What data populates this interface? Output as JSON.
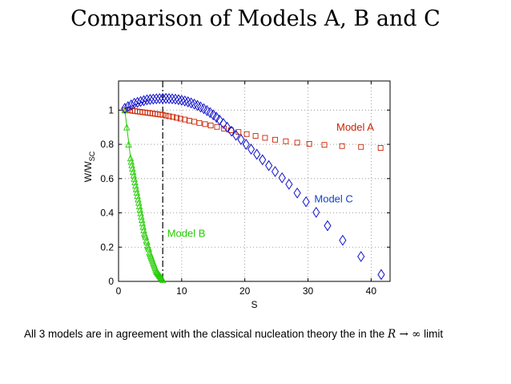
{
  "page": {
    "title": "Comparison of Models A, B and C",
    "caption_prefix": "All 3 models are in agreement with the classical nucleation theory the in the",
    "caption_math": "R → ∞",
    "caption_suffix": "limit"
  },
  "chart_data": {
    "type": "scatter",
    "title": "Comparison of Models A, B and C",
    "xlabel": "S",
    "ylabel": "W/W",
    "ylabel_subscript": "SC",
    "xlim": [
      0,
      43
    ],
    "ylim": [
      0,
      1.17
    ],
    "xticks": [
      0,
      10,
      20,
      30,
      40
    ],
    "yticks": [
      0,
      0.2,
      0.4,
      0.6,
      0.8,
      1
    ],
    "ytick_labels": [
      "0",
      "0.2",
      "0.4",
      "0.6",
      "0.8",
      "1"
    ],
    "xtick_labels": [
      "0",
      "10",
      "20",
      "30",
      "40"
    ],
    "grid": "dotted",
    "vertical_reference_line": {
      "x": 7.0,
      "style": "dash-dot",
      "color": "#000000"
    },
    "series": [
      {
        "name": "Model A",
        "marker": "square",
        "color": "#cc2200",
        "x": [
          1,
          1.4,
          1.8,
          2.2,
          2.6,
          3.0,
          3.4,
          3.8,
          4.2,
          4.6,
          5.0,
          5.4,
          5.8,
          6.2,
          6.6,
          7.0,
          7.5,
          8.0,
          8.6,
          9.2,
          9.8,
          10.5,
          11.2,
          12.0,
          12.8,
          13.7,
          14.6,
          15.6,
          16.7,
          17.8,
          19.0,
          20.3,
          21.7,
          23.2,
          24.8,
          26.5,
          28.3,
          30.2,
          32.6,
          35.4,
          38.4,
          41.5
        ],
        "y": [
          1.0,
          1.0,
          0.998,
          0.996,
          0.994,
          0.992,
          0.99,
          0.988,
          0.986,
          0.984,
          0.982,
          0.98,
          0.978,
          0.976,
          0.974,
          0.972,
          0.968,
          0.964,
          0.96,
          0.955,
          0.95,
          0.945,
          0.938,
          0.932,
          0.925,
          0.918,
          0.91,
          0.902,
          0.892,
          0.882,
          0.872,
          0.86,
          0.849,
          0.838,
          0.827,
          0.818,
          0.81,
          0.803,
          0.797,
          0.79,
          0.785,
          0.779
        ]
      },
      {
        "name": "Model B",
        "marker": "triangle",
        "color": "#22cc00",
        "x": [
          1.0,
          1.3,
          1.6,
          1.9,
          2.0,
          2.1,
          2.2,
          2.3,
          2.4,
          2.5,
          2.6,
          2.7,
          2.8,
          2.9,
          3.0,
          3.1,
          3.2,
          3.3,
          3.4,
          3.5,
          3.6,
          3.7,
          3.8,
          3.9,
          4.0,
          4.1,
          4.2,
          4.3,
          4.4,
          4.5,
          4.6,
          4.7,
          4.8,
          4.9,
          5.0,
          5.1,
          5.2,
          5.3,
          5.4,
          5.5,
          5.6,
          5.7,
          5.8,
          5.9,
          6.0,
          6.1,
          6.2,
          6.3,
          6.4,
          6.5,
          6.6,
          6.7,
          6.8,
          6.9,
          7.0
        ],
        "y": [
          1.0,
          0.9,
          0.8,
          0.72,
          0.7,
          0.68,
          0.66,
          0.64,
          0.62,
          0.6,
          0.58,
          0.56,
          0.54,
          0.52,
          0.5,
          0.48,
          0.46,
          0.44,
          0.42,
          0.4,
          0.38,
          0.36,
          0.34,
          0.32,
          0.3,
          0.28,
          0.27,
          0.26,
          0.24,
          0.23,
          0.21,
          0.2,
          0.19,
          0.17,
          0.16,
          0.15,
          0.14,
          0.13,
          0.12,
          0.11,
          0.1,
          0.09,
          0.08,
          0.07,
          0.06,
          0.055,
          0.05,
          0.045,
          0.04,
          0.035,
          0.03,
          0.025,
          0.02,
          0.015,
          0.01
        ]
      },
      {
        "name": "Model C",
        "marker": "diamond",
        "color": "#1111cc",
        "x": [
          1.0,
          1.5,
          2.0,
          2.5,
          3.0,
          3.5,
          4.0,
          4.5,
          5.0,
          5.5,
          6.0,
          6.5,
          7.0,
          7.5,
          8.0,
          8.5,
          9.0,
          9.5,
          10.0,
          10.5,
          11.0,
          11.5,
          12.0,
          12.5,
          13.0,
          13.5,
          14.0,
          14.5,
          15.0,
          15.5,
          16.0,
          16.6,
          17.2,
          17.9,
          18.6,
          19.4,
          20.2,
          21.0,
          21.9,
          22.8,
          23.8,
          24.8,
          25.9,
          27.0,
          28.3,
          29.7,
          31.3,
          33.1,
          35.5,
          38.4,
          41.6
        ],
        "y": [
          1.01,
          1.02,
          1.03,
          1.04,
          1.045,
          1.05,
          1.055,
          1.06,
          1.062,
          1.064,
          1.066,
          1.067,
          1.068,
          1.068,
          1.067,
          1.066,
          1.064,
          1.061,
          1.057,
          1.053,
          1.048,
          1.042,
          1.035,
          1.027,
          1.018,
          1.008,
          0.997,
          0.985,
          0.972,
          0.958,
          0.942,
          0.922,
          0.9,
          0.877,
          0.853,
          0.828,
          0.8,
          0.772,
          0.742,
          0.71,
          0.676,
          0.641,
          0.605,
          0.567,
          0.516,
          0.465,
          0.403,
          0.325,
          0.24,
          0.145,
          0.04
        ]
      }
    ],
    "annotations": [
      {
        "text": "Model A",
        "x": 34.5,
        "y": 0.88,
        "color": "#cc2200"
      },
      {
        "text": "Model C",
        "x": 31.0,
        "y": 0.46,
        "color": "#1144cc"
      },
      {
        "text": "Model B",
        "x": 7.7,
        "y": 0.26,
        "color": "#22cc00"
      }
    ]
  }
}
